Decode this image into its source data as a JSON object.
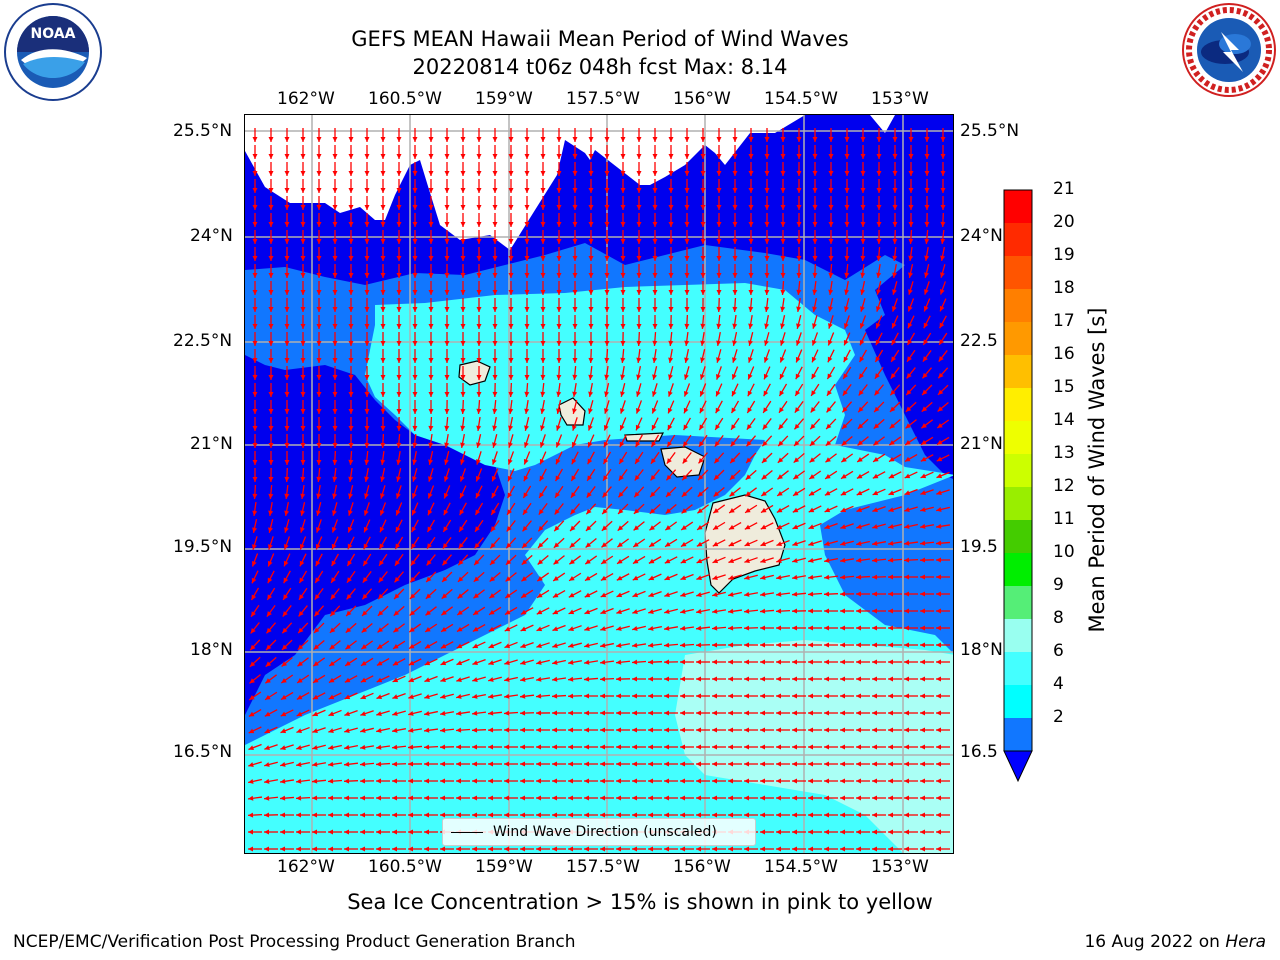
{
  "title": {
    "line1": "GEFS MEAN Hawaii Mean Period of Wind Waves",
    "line2": "20220814 t06z 048h fcst   Max: 8.14"
  },
  "axes": {
    "lon_ticks": [
      "162°W",
      "160.5°W",
      "159°W",
      "157.5°W",
      "156°W",
      "154.5°W",
      "153°W"
    ],
    "lat_ticks": [
      "25.5°N",
      "24°N",
      "22.5°N",
      "21°N",
      "19.5°N",
      "18°N",
      "16.5°N"
    ],
    "lat_ticks_right": [
      "25.5°N",
      "24°N",
      "22.5",
      "21°N",
      "19.5",
      "18°N",
      "16.5"
    ]
  },
  "legend": {
    "label": "Wind Wave Direction (unscaled)"
  },
  "colorbar": {
    "title": "Mean Period of Wind Waves [s]",
    "labels": [
      "21",
      "20",
      "19",
      "18",
      "17",
      "16",
      "15",
      "14",
      "13",
      "12",
      "11",
      "10",
      "9",
      "8",
      "6",
      "4",
      "2"
    ],
    "colors": [
      "#ff0000",
      "#ff2a00",
      "#ff5500",
      "#ff7f00",
      "#ff9900",
      "#ffbf00",
      "#ffee00",
      "#eeff00",
      "#ccff00",
      "#99ee00",
      "#44cc00",
      "#00ee00",
      "#55ee77",
      "#99fff0",
      "#44ffff",
      "#00ffff",
      "#1177ff"
    ],
    "under_color": "#0000ff"
  },
  "subtitle": "Sea Ice Concentration > 15% is shown in pink to yellow",
  "footer": {
    "left": "NCEP/EMC/Verification Post Processing Product Generation Branch",
    "right_prefix": "16 Aug 2022 on ",
    "right_host": "Hera"
  },
  "logos": {
    "noaa_text": "NOAA",
    "nws_text": "NATIONAL WEATHER SERVICE"
  },
  "map_colors": {
    "deep": "#0000ee",
    "band1": "#1177ff",
    "band2": "#44ffff",
    "band3": "#aafff5",
    "land": "#efecdc",
    "arrow": "#ff0000",
    "grid": "#b0b0b0"
  }
}
